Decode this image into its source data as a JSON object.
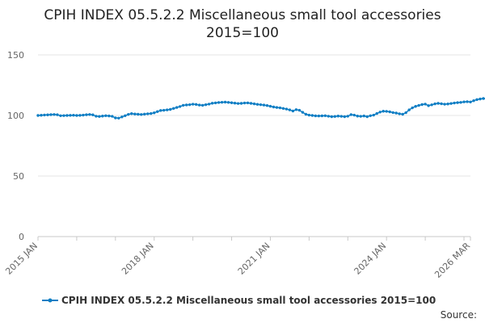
{
  "chart_data": {
    "type": "line",
    "title_lines": [
      "CPIH INDEX 05.5.2.2 Miscellaneous small tool accessories",
      "2015=100"
    ],
    "xlabel": "",
    "ylabel": "",
    "ylim": [
      0,
      150
    ],
    "y_ticks": [
      0,
      50,
      100,
      150
    ],
    "x_range": [
      "2015-01",
      "2026-03"
    ],
    "x_ticks": [
      {
        "label": "2015 JAN",
        "date": "2015-01"
      },
      {
        "label": "2018 JAN",
        "date": "2018-01"
      },
      {
        "label": "2021 JAN",
        "date": "2021-01"
      },
      {
        "label": "2024 JAN",
        "date": "2024-01"
      },
      {
        "label": "2026 MAR",
        "date": "2026-03"
      }
    ],
    "grid": "horizontal",
    "legend_position": "bottom",
    "color": "#0f7ec4",
    "series": [
      {
        "name": "CPIH INDEX 05.5.2.2 Miscellaneous small tool accessories 2015=100",
        "start": "2015-01",
        "values": [
          100.0,
          100.2,
          100.4,
          100.5,
          100.7,
          100.8,
          100.6,
          99.8,
          99.9,
          100.0,
          100.1,
          100.2,
          100.0,
          100.1,
          100.3,
          100.6,
          100.8,
          100.5,
          99.4,
          99.2,
          99.5,
          99.8,
          99.6,
          99.3,
          98.0,
          97.8,
          98.8,
          99.8,
          100.9,
          101.5,
          101.2,
          101.0,
          100.8,
          101.1,
          101.4,
          101.6,
          102.2,
          103.2,
          104.1,
          104.3,
          104.6,
          105.0,
          105.8,
          106.6,
          107.4,
          108.4,
          108.7,
          108.9,
          109.3,
          109.1,
          108.6,
          108.4,
          108.9,
          109.4,
          110.1,
          110.4,
          110.7,
          110.9,
          111.0,
          110.8,
          110.5,
          110.2,
          109.9,
          110.0,
          110.3,
          110.4,
          110.0,
          109.6,
          109.2,
          108.9,
          108.6,
          108.2,
          107.6,
          107.0,
          106.6,
          106.3,
          105.8,
          105.3,
          104.6,
          103.7,
          104.8,
          104.3,
          102.6,
          101.0,
          100.3,
          100.0,
          99.7,
          99.6,
          99.7,
          99.8,
          99.4,
          99.0,
          99.2,
          99.5,
          99.3,
          99.0,
          99.4,
          100.7,
          100.3,
          99.5,
          99.3,
          99.6,
          99.0,
          99.8,
          100.3,
          101.6,
          102.8,
          103.5,
          103.4,
          103.0,
          102.4,
          102.0,
          101.4,
          101.0,
          102.3,
          104.6,
          106.3,
          107.5,
          108.3,
          109.0,
          109.4,
          108.1,
          108.8,
          109.6,
          110.0,
          109.7,
          109.3,
          109.5,
          109.9,
          110.3,
          110.6,
          110.8,
          111.2,
          111.4,
          111.1,
          112.2,
          113.1,
          113.6,
          114.0,
          113.6,
          113.2,
          112.9,
          112.4,
          111.8,
          110.6,
          109.6,
          108.8,
          110.2,
          111.4,
          111.2,
          111.0,
          111.5,
          111.9,
          112.0,
          110.0,
          110.9,
          113.2,
          114.0,
          113.4,
          110.9,
          112.6,
          114.0,
          113.5,
          112.1,
          111.7,
          111.8,
          112.2,
          111.7,
          111.6,
          111.9,
          112.5,
          112.9,
          112.6
        ]
      }
    ]
  },
  "source": {
    "label": "Source:"
  }
}
